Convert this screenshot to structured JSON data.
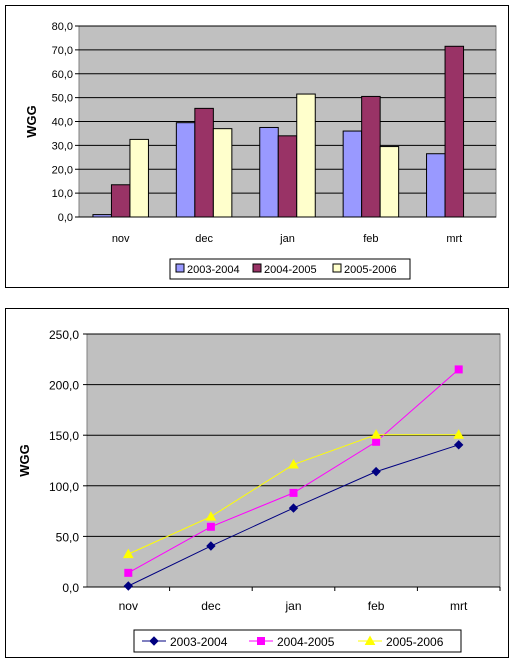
{
  "chart_data": [
    {
      "type": "bar",
      "categories": [
        "nov",
        "dec",
        "jan",
        "feb",
        "mrt"
      ],
      "series": [
        {
          "name": "2003-2004",
          "values": [
            1.0,
            39.5,
            37.5,
            36.0,
            26.5
          ],
          "color": "#9999ff"
        },
        {
          "name": "2004-2005",
          "values": [
            13.5,
            45.5,
            34.0,
            50.5,
            71.5
          ],
          "color": "#993366"
        },
        {
          "name": "2005-2006",
          "values": [
            32.5,
            37.0,
            51.5,
            29.5,
            null
          ],
          "color": "#ffffcc"
        }
      ],
      "ylabel": "WGG",
      "xlabel": "",
      "ylim": [
        0,
        80
      ],
      "yticks": [
        "0,0",
        "10,0",
        "20,0",
        "30,0",
        "40,0",
        "50,0",
        "60,0",
        "70,0",
        "80,0"
      ],
      "grid": true,
      "legend": "bottom",
      "plot_background": "#c0c0c0"
    },
    {
      "type": "line",
      "categories": [
        "nov",
        "dec",
        "jan",
        "feb",
        "mrt"
      ],
      "series": [
        {
          "name": "2003-2004",
          "values": [
            1.0,
            40.5,
            78.0,
            114.0,
            140.5
          ],
          "color": "#000080",
          "marker": "diamond"
        },
        {
          "name": "2004-2005",
          "values": [
            14.0,
            59.5,
            93.0,
            143.5,
            215.0
          ],
          "color": "#ff00ff",
          "marker": "square"
        },
        {
          "name": "2005-2006",
          "values": [
            32.5,
            69.5,
            121.0,
            150.5,
            150.5
          ],
          "color": "#ffff00",
          "marker": "triangle"
        }
      ],
      "ylabel": "WGG",
      "xlabel": "",
      "ylim": [
        0,
        250
      ],
      "yticks": [
        "0,0",
        "50,0",
        "100,0",
        "150,0",
        "200,0",
        "250,0"
      ],
      "grid": true,
      "legend": "bottom",
      "plot_background": "#c0c0c0"
    }
  ]
}
